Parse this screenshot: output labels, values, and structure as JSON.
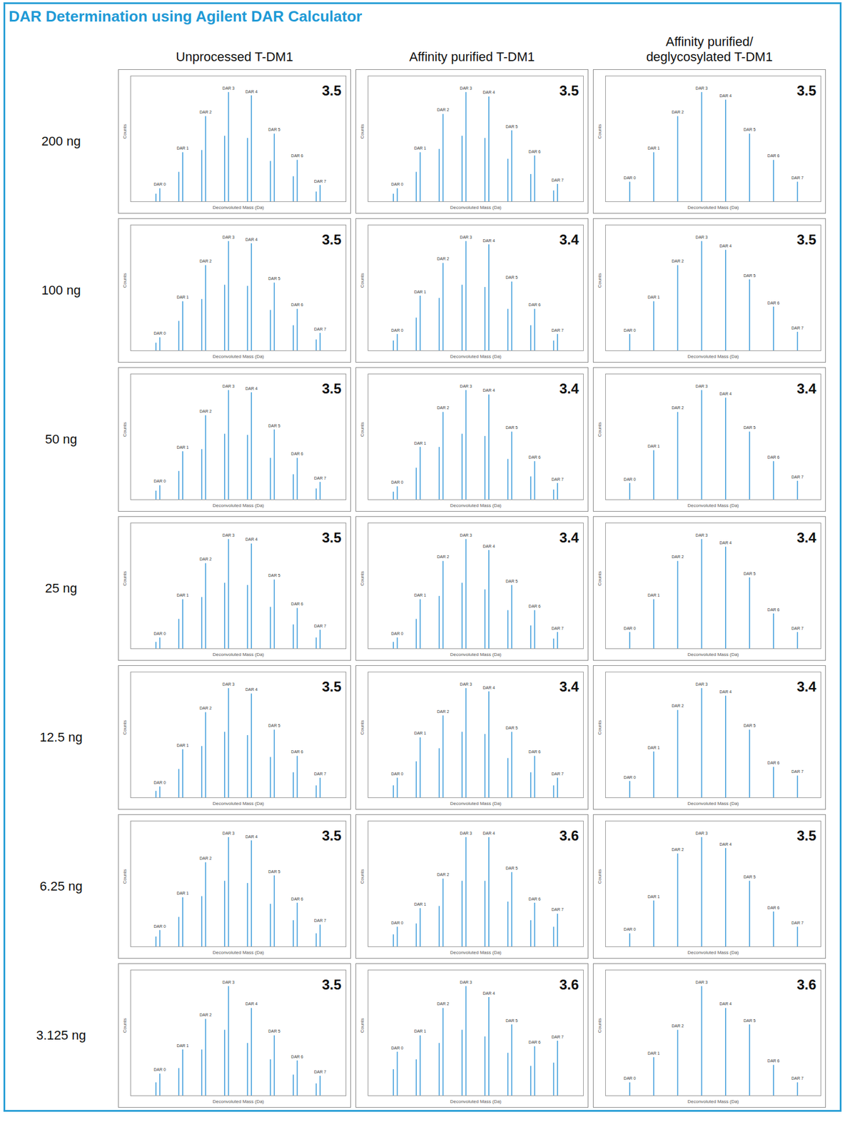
{
  "header": {
    "title": "DAR Determination using Agilent DAR Calculator"
  },
  "rows": [
    "200 ng",
    "100 ng",
    "50 ng",
    "25 ng",
    "12.5 ng",
    "6.25 ng",
    "3.125 ng"
  ],
  "columns": [
    {
      "title": "Unprocessed T-DM1",
      "xlim": [
        147000,
        156000
      ],
      "x": [
        148057,
        148219,
        149014,
        149176,
        149971,
        150133,
        150928,
        151090,
        151885,
        152047,
        152842,
        153004,
        153799,
        153961,
        154756,
        154918
      ],
      "peak_labels": [
        "DAR 0",
        "DAR 1",
        "DAR 2",
        "DAR 3",
        "DAR 4",
        "DAR 5",
        "DAR 6",
        "DAR 7"
      ]
    },
    {
      "title": "Affinity purified T-DM1",
      "xlim": [
        147000,
        156000
      ],
      "x": [
        148057,
        148219,
        149014,
        149176,
        149971,
        150133,
        150928,
        151090,
        151885,
        152047,
        152842,
        153004,
        153799,
        153961,
        154756,
        154918
      ],
      "peak_labels": [
        "DAR 0",
        "DAR 1",
        "DAR 2",
        "DAR 3",
        "DAR 4",
        "DAR 5",
        "DAR 6",
        "DAR 7"
      ]
    },
    {
      "title": "Affinity purified/ deglycosylated T-DM1",
      "xlim": [
        144200,
        152800
      ],
      "x": [
        145168,
        146125,
        147082,
        148039,
        148996,
        149953,
        150910,
        151867
      ],
      "peak_labels": [
        "DAR 0",
        "DAR 1",
        "DAR 2",
        "DAR 3",
        "DAR 4",
        "DAR 5",
        "DAR 6",
        "DAR 7"
      ]
    }
  ],
  "ylim": [
    0,
    1.15
  ],
  "x_label": "Deconvoluted Mass (Da)",
  "y_label": "Counts",
  "tick_labels": false,
  "color": "#3d9cdb",
  "chart_data": [
    {
      "type": "spectrum",
      "column": "Unprocessed T-DM1",
      "row": "200 ng",
      "dar": 3.5,
      "values": [
        0.07,
        0.12,
        0.27,
        0.45,
        0.47,
        0.78,
        0.6,
        1.0,
        0.58,
        0.97,
        0.37,
        0.62,
        0.23,
        0.38,
        0.09,
        0.15
      ]
    },
    {
      "type": "spectrum",
      "column": "Unprocessed T-DM1",
      "row": "100 ng",
      "dar": 3.5,
      "values": [
        0.07,
        0.12,
        0.27,
        0.45,
        0.47,
        0.78,
        0.6,
        1.0,
        0.59,
        0.98,
        0.37,
        0.62,
        0.23,
        0.38,
        0.1,
        0.16
      ]
    },
    {
      "type": "spectrum",
      "column": "Unprocessed T-DM1",
      "row": "50 ng",
      "dar": 3.5,
      "values": [
        0.08,
        0.13,
        0.26,
        0.44,
        0.46,
        0.77,
        0.6,
        1.0,
        0.59,
        0.98,
        0.38,
        0.64,
        0.23,
        0.38,
        0.1,
        0.16
      ]
    },
    {
      "type": "spectrum",
      "column": "Unprocessed T-DM1",
      "row": "25 ng",
      "dar": 3.5,
      "values": [
        0.06,
        0.1,
        0.27,
        0.45,
        0.47,
        0.78,
        0.6,
        1.0,
        0.58,
        0.96,
        0.38,
        0.63,
        0.22,
        0.37,
        0.1,
        0.17
      ]
    },
    {
      "type": "spectrum",
      "column": "Unprocessed T-DM1",
      "row": "12.5 ng",
      "dar": 3.5,
      "values": [
        0.06,
        0.1,
        0.26,
        0.44,
        0.47,
        0.78,
        0.6,
        1.0,
        0.57,
        0.95,
        0.37,
        0.62,
        0.23,
        0.38,
        0.11,
        0.18
      ]
    },
    {
      "type": "spectrum",
      "column": "Unprocessed T-DM1",
      "row": "6.25 ng",
      "dar": 3.5,
      "values": [
        0.09,
        0.15,
        0.27,
        0.45,
        0.46,
        0.77,
        0.6,
        1.0,
        0.58,
        0.97,
        0.39,
        0.65,
        0.24,
        0.4,
        0.12,
        0.2
      ]
    },
    {
      "type": "spectrum",
      "column": "Unprocessed T-DM1",
      "row": "3.125 ng",
      "dar": 3.5,
      "values": [
        0.12,
        0.2,
        0.25,
        0.42,
        0.42,
        0.7,
        0.6,
        1.0,
        0.48,
        0.8,
        0.33,
        0.55,
        0.19,
        0.32,
        0.11,
        0.18
      ]
    },
    {
      "type": "spectrum",
      "column": "Affinity purified T-DM1",
      "row": "200 ng",
      "dar": 3.5,
      "values": [
        0.07,
        0.12,
        0.27,
        0.45,
        0.48,
        0.8,
        0.6,
        1.0,
        0.58,
        0.96,
        0.39,
        0.65,
        0.25,
        0.42,
        0.1,
        0.16
      ]
    },
    {
      "type": "spectrum",
      "column": "Affinity purified T-DM1",
      "row": "100 ng",
      "dar": 3.4,
      "values": [
        0.09,
        0.15,
        0.3,
        0.5,
        0.48,
        0.8,
        0.6,
        1.0,
        0.58,
        0.97,
        0.38,
        0.63,
        0.23,
        0.38,
        0.09,
        0.15
      ]
    },
    {
      "type": "spectrum",
      "column": "Affinity purified T-DM1",
      "row": "50 ng",
      "dar": 3.4,
      "values": [
        0.07,
        0.12,
        0.29,
        0.48,
        0.48,
        0.8,
        0.6,
        1.0,
        0.58,
        0.96,
        0.37,
        0.62,
        0.21,
        0.35,
        0.09,
        0.15
      ]
    },
    {
      "type": "spectrum",
      "column": "Affinity purified T-DM1",
      "row": "25 ng",
      "dar": 3.4,
      "values": [
        0.06,
        0.1,
        0.27,
        0.45,
        0.48,
        0.8,
        0.6,
        1.0,
        0.54,
        0.9,
        0.35,
        0.58,
        0.21,
        0.35,
        0.09,
        0.15
      ]
    },
    {
      "type": "spectrum",
      "column": "Affinity purified T-DM1",
      "row": "12.5 ng",
      "dar": 3.4,
      "values": [
        0.11,
        0.18,
        0.33,
        0.55,
        0.45,
        0.75,
        0.6,
        1.0,
        0.58,
        0.97,
        0.36,
        0.6,
        0.23,
        0.38,
        0.11,
        0.18
      ]
    },
    {
      "type": "spectrum",
      "column": "Affinity purified T-DM1",
      "row": "6.25 ng",
      "dar": 3.6,
      "values": [
        0.11,
        0.18,
        0.21,
        0.35,
        0.37,
        0.62,
        0.6,
        1.0,
        0.6,
        1.0,
        0.41,
        0.68,
        0.24,
        0.4,
        0.18,
        0.3
      ]
    },
    {
      "type": "spectrum",
      "column": "Affinity purified T-DM1",
      "row": "3.125 ng",
      "dar": 3.6,
      "values": [
        0.24,
        0.4,
        0.33,
        0.55,
        0.48,
        0.8,
        0.6,
        1.0,
        0.54,
        0.9,
        0.39,
        0.65,
        0.27,
        0.45,
        0.3,
        0.5
      ]
    },
    {
      "type": "spectrum",
      "column": "Affinity purified/ deglycosylated T-DM1",
      "row": "200 ng",
      "dar": 3.5,
      "values": [
        0.18,
        0.45,
        0.78,
        1.0,
        0.93,
        0.62,
        0.38,
        0.18
      ]
    },
    {
      "type": "spectrum",
      "column": "Affinity purified/ deglycosylated T-DM1",
      "row": "100 ng",
      "dar": 3.5,
      "values": [
        0.15,
        0.45,
        0.78,
        1.0,
        0.92,
        0.65,
        0.4,
        0.17
      ]
    },
    {
      "type": "spectrum",
      "column": "Affinity purified/ deglycosylated T-DM1",
      "row": "50 ng",
      "dar": 3.4,
      "values": [
        0.15,
        0.45,
        0.8,
        1.0,
        0.93,
        0.62,
        0.35,
        0.17
      ]
    },
    {
      "type": "spectrum",
      "column": "Affinity purified/ deglycosylated T-DM1",
      "row": "25 ng",
      "dar": 3.4,
      "values": [
        0.15,
        0.45,
        0.8,
        1.0,
        0.93,
        0.65,
        0.32,
        0.15
      ]
    },
    {
      "type": "spectrum",
      "column": "Affinity purified/ deglycosylated T-DM1",
      "row": "12.5 ng",
      "dar": 3.4,
      "values": [
        0.15,
        0.42,
        0.8,
        1.0,
        0.93,
        0.62,
        0.28,
        0.2
      ]
    },
    {
      "type": "spectrum",
      "column": "Affinity purified/ deglycosylated T-DM1",
      "row": "6.25 ng",
      "dar": 3.5,
      "values": [
        0.12,
        0.42,
        0.85,
        1.0,
        0.9,
        0.6,
        0.32,
        0.18
      ]
    },
    {
      "type": "spectrum",
      "column": "Affinity purified/ deglycosylated T-DM1",
      "row": "3.125 ng",
      "dar": 3.6,
      "values": [
        0.12,
        0.35,
        0.6,
        1.0,
        0.8,
        0.65,
        0.28,
        0.12
      ]
    }
  ]
}
